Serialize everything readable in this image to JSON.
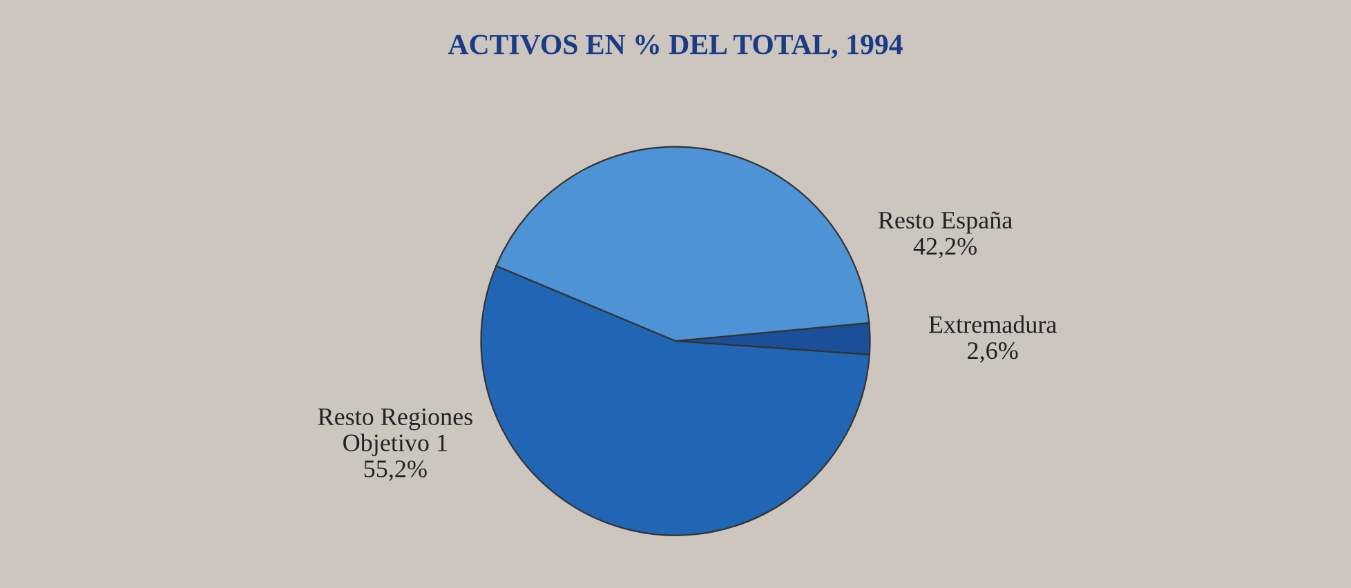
{
  "chart_data": {
    "type": "pie",
    "title": "ACTIVOS EN % DEL TOTAL, 1994",
    "categories": [
      "Extremadura",
      "Resto España",
      "Resto Regiones\nObjetivo 1"
    ],
    "values": [
      2.6,
      42.2,
      55.2
    ],
    "value_labels": [
      "2,6%",
      "42,2%",
      "55,2%"
    ],
    "colors": [
      "#1b4f9a",
      "#4d93d6",
      "#2166b4"
    ],
    "legend": false
  }
}
